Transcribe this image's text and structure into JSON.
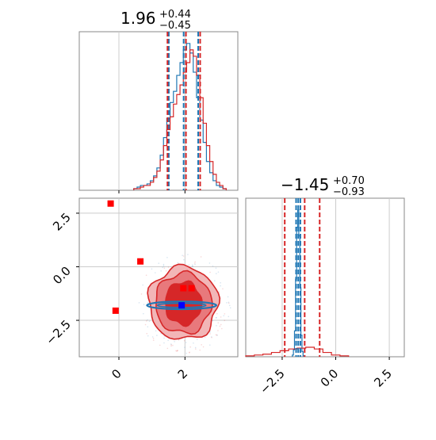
{
  "chart_data": [
    {
      "type": "histogram",
      "panel": "top-left marginal",
      "title": {
        "median": "1.96",
        "plus": "+0.44",
        "minus": "−0.45"
      },
      "xlim": [
        -1.2,
        3.6
      ],
      "x_ticks": [
        0,
        2
      ],
      "series": [
        {
          "color": "#1f77b4",
          "bins": [
            [
              0.5,
              1
            ],
            [
              0.6,
              2
            ],
            [
              0.7,
              3
            ],
            [
              0.8,
              3
            ],
            [
              0.9,
              4
            ],
            [
              1.0,
              6
            ],
            [
              1.1,
              9
            ],
            [
              1.2,
              14
            ],
            [
              1.3,
              22
            ],
            [
              1.4,
              33
            ],
            [
              1.5,
              45
            ],
            [
              1.6,
              55
            ],
            [
              1.7,
              62
            ],
            [
              1.8,
              72
            ],
            [
              1.9,
              80
            ],
            [
              2.0,
              88
            ],
            [
              2.1,
              92
            ],
            [
              2.2,
              86
            ],
            [
              2.3,
              74
            ],
            [
              2.4,
              58
            ],
            [
              2.5,
              44
            ],
            [
              2.6,
              30
            ],
            [
              2.7,
              18
            ],
            [
              2.8,
              11
            ],
            [
              2.9,
              6
            ],
            [
              3.0,
              3
            ],
            [
              3.1,
              2
            ],
            [
              3.2,
              1
            ]
          ],
          "quantiles": [
            1.51,
            1.96,
            2.4
          ]
        },
        {
          "color": "#d62728",
          "bins": [
            [
              0.5,
              1
            ],
            [
              0.6,
              1
            ],
            [
              0.7,
              2
            ],
            [
              0.8,
              3
            ],
            [
              0.9,
              3
            ],
            [
              1.0,
              5
            ],
            [
              1.1,
              8
            ],
            [
              1.2,
              12
            ],
            [
              1.3,
              19
            ],
            [
              1.4,
              28
            ],
            [
              1.5,
              38
            ],
            [
              1.6,
              46
            ],
            [
              1.7,
              54
            ],
            [
              1.8,
              60
            ],
            [
              1.9,
              66
            ],
            [
              2.0,
              74
            ],
            [
              2.1,
              80
            ],
            [
              2.2,
              88
            ],
            [
              2.3,
              84
            ],
            [
              2.4,
              72
            ],
            [
              2.5,
              58
            ],
            [
              2.6,
              42
            ],
            [
              2.7,
              28
            ],
            [
              2.8,
              18
            ],
            [
              2.9,
              10
            ],
            [
              3.0,
              5
            ],
            [
              3.1,
              3
            ],
            [
              3.2,
              1
            ]
          ],
          "quantiles": [
            1.47,
            2.03,
            2.46
          ]
        }
      ]
    },
    {
      "type": "scatter",
      "panel": "bottom-left 2D",
      "xlim": [
        -1.2,
        3.6
      ],
      "ylim": [
        -4.2,
        3.2
      ],
      "x_ticks": [
        0,
        2
      ],
      "y_ticks": [
        -2.5,
        0.0,
        2.5
      ],
      "x_tick_labels": [
        "0",
        "2"
      ],
      "y_tick_labels": [
        "−2.5",
        "0.0",
        "2.5"
      ],
      "contours": {
        "color": "#d62728",
        "levels": [
          {
            "fill": "#f2b6b7",
            "radii": [
              1.05,
              1.7
            ]
          },
          {
            "fill": "#e8797c",
            "radii": [
              0.85,
              1.4
            ]
          },
          {
            "fill": "#d62728",
            "radii": [
              0.55,
              1.0
            ]
          }
        ],
        "center": [
          1.95,
          -1.7
        ]
      },
      "blue_ellipse": {
        "center": [
          1.9,
          -1.8
        ],
        "rx": 1.05,
        "ry": 0.18,
        "color": "#1f77b4"
      },
      "points_red": [
        [
          -0.25,
          2.95
        ],
        [
          0.65,
          0.25
        ],
        [
          -0.1,
          -2.05
        ],
        [
          1.95,
          -1.0
        ],
        [
          2.2,
          -1.0
        ]
      ],
      "points_blue": [
        [
          1.9,
          -1.8
        ]
      ]
    },
    {
      "type": "histogram",
      "panel": "bottom-right marginal",
      "title": {
        "median": "−1.45",
        "plus": "+0.70",
        "minus": "−0.93"
      },
      "xlim": [
        -4.2,
        3.2
      ],
      "x_ticks": [
        -2.5,
        0.0,
        2.5
      ],
      "x_tick_labels": [
        "−2.5",
        "0.0",
        "2.5"
      ],
      "series": [
        {
          "color": "#1f77b4",
          "bins": [
            [
              -2.0,
              2
            ],
            [
              -1.95,
              8
            ],
            [
              -1.9,
              30
            ],
            [
              -1.85,
              90
            ],
            [
              -1.8,
              150
            ],
            [
              -1.75,
              170
            ],
            [
              -1.7,
              140
            ],
            [
              -1.65,
              80
            ],
            [
              -1.6,
              25
            ],
            [
              -1.55,
              6
            ],
            [
              -1.5,
              1
            ]
          ],
          "quantiles": [
            -1.85,
            -1.75,
            -1.65
          ]
        },
        {
          "color": "#d62728",
          "bins": [
            [
              -4.0,
              1
            ],
            [
              -3.6,
              2
            ],
            [
              -3.2,
              3
            ],
            [
              -2.8,
              5
            ],
            [
              -2.4,
              7
            ],
            [
              -2.0,
              9
            ],
            [
              -1.6,
              10
            ],
            [
              -1.2,
              11
            ],
            [
              -0.8,
              9
            ],
            [
              -0.4,
              5
            ],
            [
              0.0,
              2
            ],
            [
              0.4,
              1
            ]
          ],
          "quantiles": [
            -2.38,
            -1.45,
            -0.75
          ]
        }
      ]
    }
  ]
}
